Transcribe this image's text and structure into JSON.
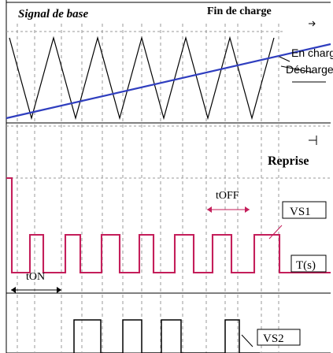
{
  "diagram": {
    "labels": {
      "signal_de_base": "Signal de base",
      "fin_de_charge": "Fin de charge",
      "en_charge": "En charge",
      "decharge": "Décharge",
      "reprise": "Reprise",
      "t_off": "tOFF",
      "t_on": "tON",
      "vs1": "VS1",
      "vs2": "VS2",
      "t_s": "T(s)"
    },
    "colors": {
      "triangle": "#000000",
      "reference_line": "#2f3ebf",
      "pwm_signal": "#c41e5a",
      "grid": "#9a9a9a",
      "axis": "#000000"
    }
  }
}
